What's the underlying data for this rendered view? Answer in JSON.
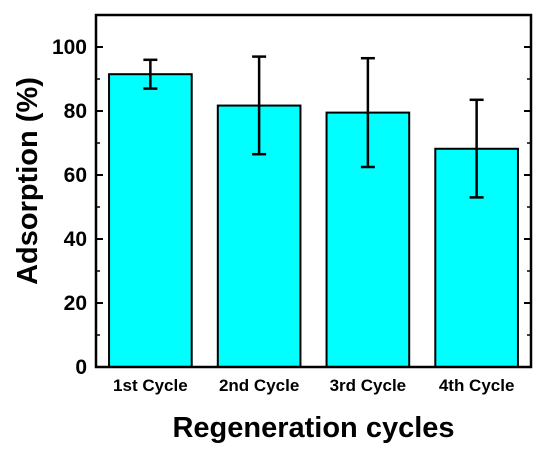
{
  "chart_data": {
    "type": "bar",
    "title": "",
    "xlabel": "Regeneration cycles",
    "ylabel": "Adsorption (%)",
    "categories": [
      "1st Cycle",
      "2nd Cycle",
      "3rd Cycle",
      "4th Cycle"
    ],
    "values": [
      91.5,
      81.7,
      79.5,
      68.2
    ],
    "error_low": [
      87.0,
      66.5,
      62.5,
      53.0
    ],
    "error_high": [
      96.0,
      97.0,
      96.5,
      83.5
    ],
    "ylim": [
      0,
      110
    ],
    "yticks": [
      0,
      20,
      40,
      60,
      80,
      100
    ],
    "grid": false,
    "legend": "none",
    "bar_color": "#00FFFF",
    "edge_color": "#000000"
  }
}
